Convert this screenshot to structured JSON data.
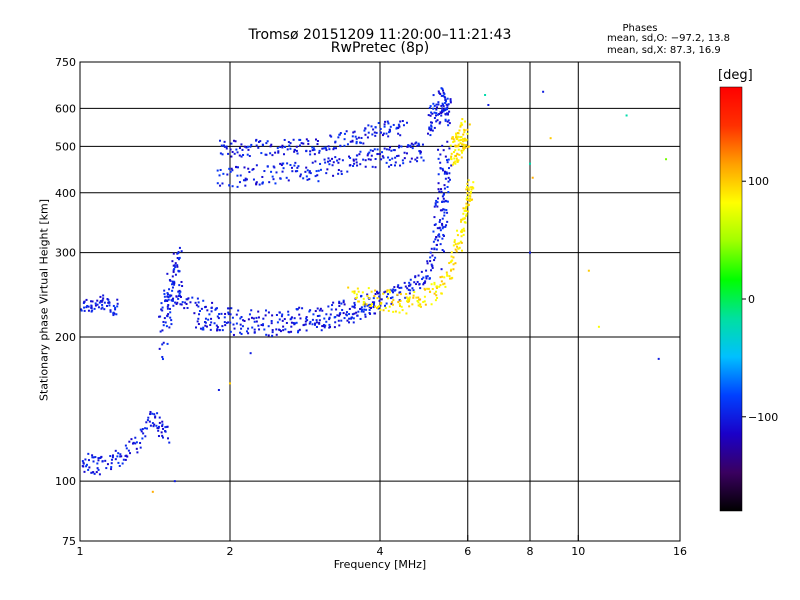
{
  "chart_data": {
    "type": "scatter",
    "title": "Tromsø 20151209 11:20:00–11:21:43",
    "subtitle": "RwPretec (8p)",
    "xlabel": "Frequency [MHz]",
    "ylabel": "Stationary phase Virtual Height [km]",
    "x_scale": "log",
    "y_scale": "log",
    "xlim": [
      1,
      16
    ],
    "ylim": [
      75,
      750
    ],
    "x_ticks": [
      "1",
      "2",
      "4",
      "6",
      "8",
      "10",
      "16"
    ],
    "y_ticks": [
      "75",
      "100",
      "200",
      "300",
      "400",
      "500",
      "600",
      "750"
    ],
    "grid": true,
    "legend": {
      "title": "Phases",
      "lines": [
        "mean, sd,O: −97.2, 13.8",
        "mean, sd,X:  87.3, 16.9"
      ]
    },
    "colorbar": {
      "unit": "[deg]",
      "ticks": [
        "100",
        "0",
        "−100"
      ],
      "range": [
        -180,
        180
      ],
      "colors": [
        "#000000",
        "#3a0060",
        "#1a00c8",
        "#0040ff",
        "#00c0ff",
        "#00e0a0",
        "#00ff00",
        "#a0ff00",
        "#ffff00",
        "#ffa000",
        "#ff3000",
        "#ff0000"
      ]
    },
    "series": [
      {
        "mode": "O",
        "phase_deg": -100,
        "segments": [
          {
            "x": [
              1.0,
              1.1,
              1.2
            ],
            "y": [
              232,
              235,
              230
            ],
            "spread": 8
          },
          {
            "x": [
              1.0,
              1.1,
              1.25,
              1.4,
              1.5
            ],
            "y": [
              110,
              108,
              115,
              135,
              125
            ],
            "spread": 10
          },
          {
            "x": [
              1.45,
              1.5,
              1.55,
              1.6
            ],
            "y": [
              200,
              235,
              270,
              280
            ],
            "spread": 25
          },
          {
            "x": [
              1.5,
              1.7,
              2.0,
              2.5,
              3.0,
              3.5,
              4.0,
              4.5,
              5.0,
              5.2,
              5.3
            ],
            "y": [
              245,
              232,
              222,
              218,
              225,
              232,
              240,
              250,
              270,
              330,
              500
            ],
            "spread": 8
          },
          {
            "x": [
              1.7,
              2.0,
              2.5,
              3.0,
              3.5,
              4.0
            ],
            "y": [
              215,
              208,
              207,
              212,
              220,
              232
            ],
            "spread": 6
          },
          {
            "x": [
              1.9,
              2.2,
              2.6,
              3.0,
              3.5,
              4.0,
              4.5,
              4.9
            ],
            "y": [
              430,
              435,
              440,
              445,
              460,
              475,
              480,
              490
            ],
            "spread": 10
          },
          {
            "x": [
              1.9,
              2.2,
              2.6,
              3.0,
              3.5,
              4.0,
              4.5
            ],
            "y": [
              495,
              496,
              498,
              500,
              520,
              540,
              550
            ],
            "spread": 8
          },
          {
            "x": [
              5.0,
              5.2,
              5.4,
              5.5
            ],
            "y": [
              560,
              600,
              620,
              580
            ],
            "spread": 15
          },
          {
            "x": [
              5.3,
              5.4,
              5.5
            ],
            "y": [
              300,
              400,
              480
            ],
            "spread": 20
          }
        ]
      },
      {
        "mode": "X",
        "phase_deg": 90,
        "segments": [
          {
            "x": [
              3.5,
              4.0,
              4.5,
              5.0,
              5.5,
              5.8,
              6.0,
              6.1
            ],
            "y": [
              245,
              240,
              235,
              245,
              270,
              320,
              380,
              420
            ],
            "spread": 10
          },
          {
            "x": [
              5.6,
              5.7,
              5.8,
              6.0
            ],
            "y": [
              480,
              500,
              520,
              540
            ],
            "spread": 15
          }
        ]
      }
    ],
    "isolated_points": [
      {
        "x": 8.0,
        "y": 300,
        "phase_deg": -100
      },
      {
        "x": 8.5,
        "y": 650,
        "phase_deg": -100
      },
      {
        "x": 12.5,
        "y": 580,
        "phase_deg": -20
      },
      {
        "x": 14.5,
        "y": 180,
        "phase_deg": -100
      },
      {
        "x": 10.5,
        "y": 275,
        "phase_deg": 100
      },
      {
        "x": 11.0,
        "y": 210,
        "phase_deg": 80
      },
      {
        "x": 8.0,
        "y": 460,
        "phase_deg": -20
      },
      {
        "x": 8.1,
        "y": 430,
        "phase_deg": 110
      },
      {
        "x": 15.0,
        "y": 470,
        "phase_deg": 40
      },
      {
        "x": 6.5,
        "y": 640,
        "phase_deg": -20
      },
      {
        "x": 6.6,
        "y": 610,
        "phase_deg": -100
      },
      {
        "x": 8.8,
        "y": 520,
        "phase_deg": 100
      },
      {
        "x": 2.0,
        "y": 160,
        "phase_deg": 100
      },
      {
        "x": 1.9,
        "y": 155,
        "phase_deg": -100
      },
      {
        "x": 2.2,
        "y": 185,
        "phase_deg": -100
      },
      {
        "x": 1.4,
        "y": 95,
        "phase_deg": 110
      },
      {
        "x": 1.55,
        "y": 100,
        "phase_deg": -100
      }
    ]
  }
}
